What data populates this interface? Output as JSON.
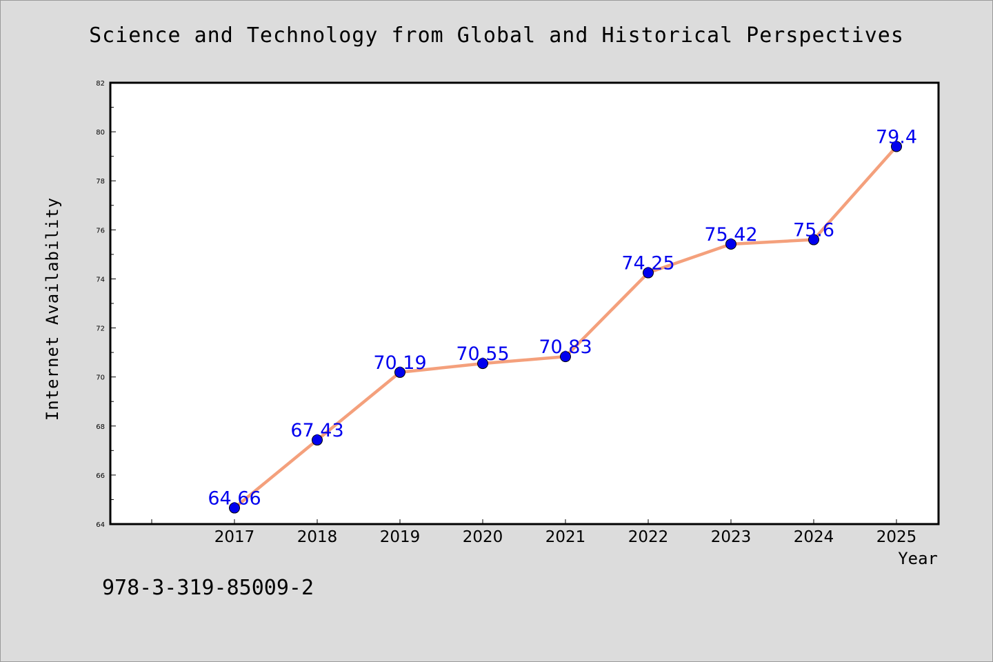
{
  "chart_data": {
    "type": "line",
    "title": "Science and Technology from Global and Historical Perspectives",
    "xlabel": "Year",
    "ylabel": "Internet Availability",
    "categories": [
      "2017",
      "2018",
      "2019",
      "2020",
      "2021",
      "2022",
      "2023",
      "2024",
      "2025"
    ],
    "series": [
      {
        "values": [
          64.66,
          67.43,
          70.19,
          70.55,
          70.83,
          74.25,
          75.42,
          75.6,
          79.4
        ],
        "data_labels": [
          "64.66",
          "67.43",
          "70.19",
          "70.55",
          "70.83",
          "74.25",
          "75.42",
          "75.6",
          "79.4"
        ]
      }
    ],
    "ylim": [
      64,
      82
    ],
    "yticks": [
      "64",
      "66",
      "68",
      "70",
      "72",
      "74",
      "76",
      "78",
      "80",
      "82"
    ],
    "grid": false,
    "line_color": "#f4a07c",
    "marker_color": "#0000ee",
    "label_color": "#0000ee"
  },
  "footer": {
    "isbn": "978-3-319-85009-2"
  }
}
